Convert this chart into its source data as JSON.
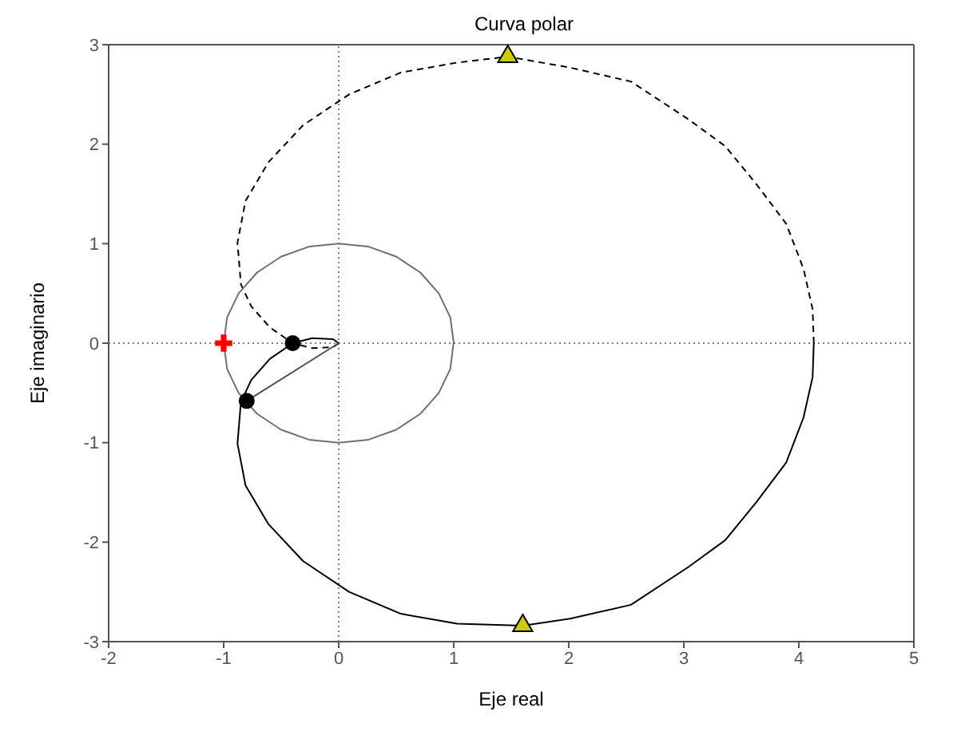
{
  "chart_data": {
    "type": "line",
    "title": "Curva polar",
    "xlabel": "Eje real",
    "ylabel": "Eje imaginario",
    "xlim": [
      -2,
      5
    ],
    "ylim": [
      -3,
      3
    ],
    "xticks": [
      -2,
      -1,
      0,
      1,
      2,
      3,
      4,
      5
    ],
    "yticks": [
      -3,
      -2,
      -1,
      0,
      1,
      2,
      3
    ],
    "grid": false,
    "series": [
      {
        "color": "#808080",
        "line_style": "dotted",
        "marker": "none",
        "x": [
          0,
          0
        ],
        "values": [
          -3,
          3
        ]
      },
      {
        "color": "#808080",
        "line_style": "dotted",
        "marker": "none",
        "x": [
          -2,
          5
        ],
        "values": [
          0,
          0
        ]
      },
      {
        "color": "#000000",
        "line_style": "solid",
        "marker": "none",
        "x": [
          4.13,
          4.12,
          4.04,
          3.89,
          3.63,
          3.36,
          3.04,
          2.54,
          2.01,
          1.6,
          1.03,
          0.54,
          0.09,
          -0.31,
          -0.61,
          -0.81,
          -0.88,
          -0.85,
          -0.76,
          -0.6,
          -0.4,
          -0.23,
          -0.05,
          0
        ],
        "values": [
          0,
          -0.34,
          -0.75,
          -1.2,
          -1.6,
          -1.98,
          -2.25,
          -2.63,
          -2.77,
          -2.84,
          -2.82,
          -2.72,
          -2.5,
          -2.19,
          -1.82,
          -1.43,
          -1.01,
          -0.59,
          -0.37,
          -0.16,
          0,
          0.05,
          0.04,
          0
        ]
      },
      {
        "color": "#000000",
        "line_style": "dashed",
        "marker": "none",
        "x": [
          4.13,
          4.12,
          4.04,
          3.89,
          3.63,
          3.36,
          3.04,
          2.54,
          2.01,
          1.47,
          1.03,
          0.54,
          0.09,
          -0.31,
          -0.61,
          -0.81,
          -0.88,
          -0.85,
          -0.76,
          -0.6,
          -0.4,
          -0.23,
          -0.05,
          0
        ],
        "values": [
          0,
          0.34,
          0.75,
          1.2,
          1.6,
          1.98,
          2.25,
          2.63,
          2.77,
          2.88,
          2.82,
          2.72,
          2.5,
          2.19,
          1.82,
          1.43,
          1.01,
          0.59,
          0.37,
          0.16,
          0,
          -0.05,
          -0.04,
          0
        ]
      },
      {
        "color": "#707070",
        "line_style": "solid",
        "marker": "none",
        "x": [
          1,
          0.97,
          0.87,
          0.71,
          0.5,
          0.26,
          0,
          -0.26,
          -0.5,
          -0.71,
          -0.87,
          -0.97,
          -1,
          -0.97,
          -0.87,
          -0.71,
          -0.5,
          -0.26,
          0,
          0.26,
          0.5,
          0.71,
          0.87,
          0.97,
          1
        ],
        "values": [
          0,
          0.26,
          0.5,
          0.71,
          0.87,
          0.97,
          1,
          0.97,
          0.87,
          0.71,
          0.5,
          0.26,
          0,
          -0.26,
          -0.5,
          -0.71,
          -0.87,
          -0.97,
          -1,
          -0.97,
          -0.87,
          -0.71,
          -0.5,
          -0.26,
          0.02
        ]
      },
      {
        "color": "#505050",
        "line_style": "solid",
        "marker": "none",
        "x": [
          -0.8,
          0
        ],
        "values": [
          -0.58,
          0
        ]
      },
      {
        "type": "scatter",
        "color": "#ff0000",
        "marker": "cross",
        "x": [
          -1
        ],
        "values": [
          0
        ]
      },
      {
        "type": "scatter",
        "color": "#000000",
        "marker": "circle",
        "x": [
          -0.4,
          -0.8
        ],
        "values": [
          0,
          -0.58
        ]
      },
      {
        "type": "scatter",
        "color": "#cccc00",
        "marker": "triangle",
        "x": [
          1.47,
          1.6
        ],
        "values": [
          2.88,
          -2.84
        ]
      }
    ]
  }
}
